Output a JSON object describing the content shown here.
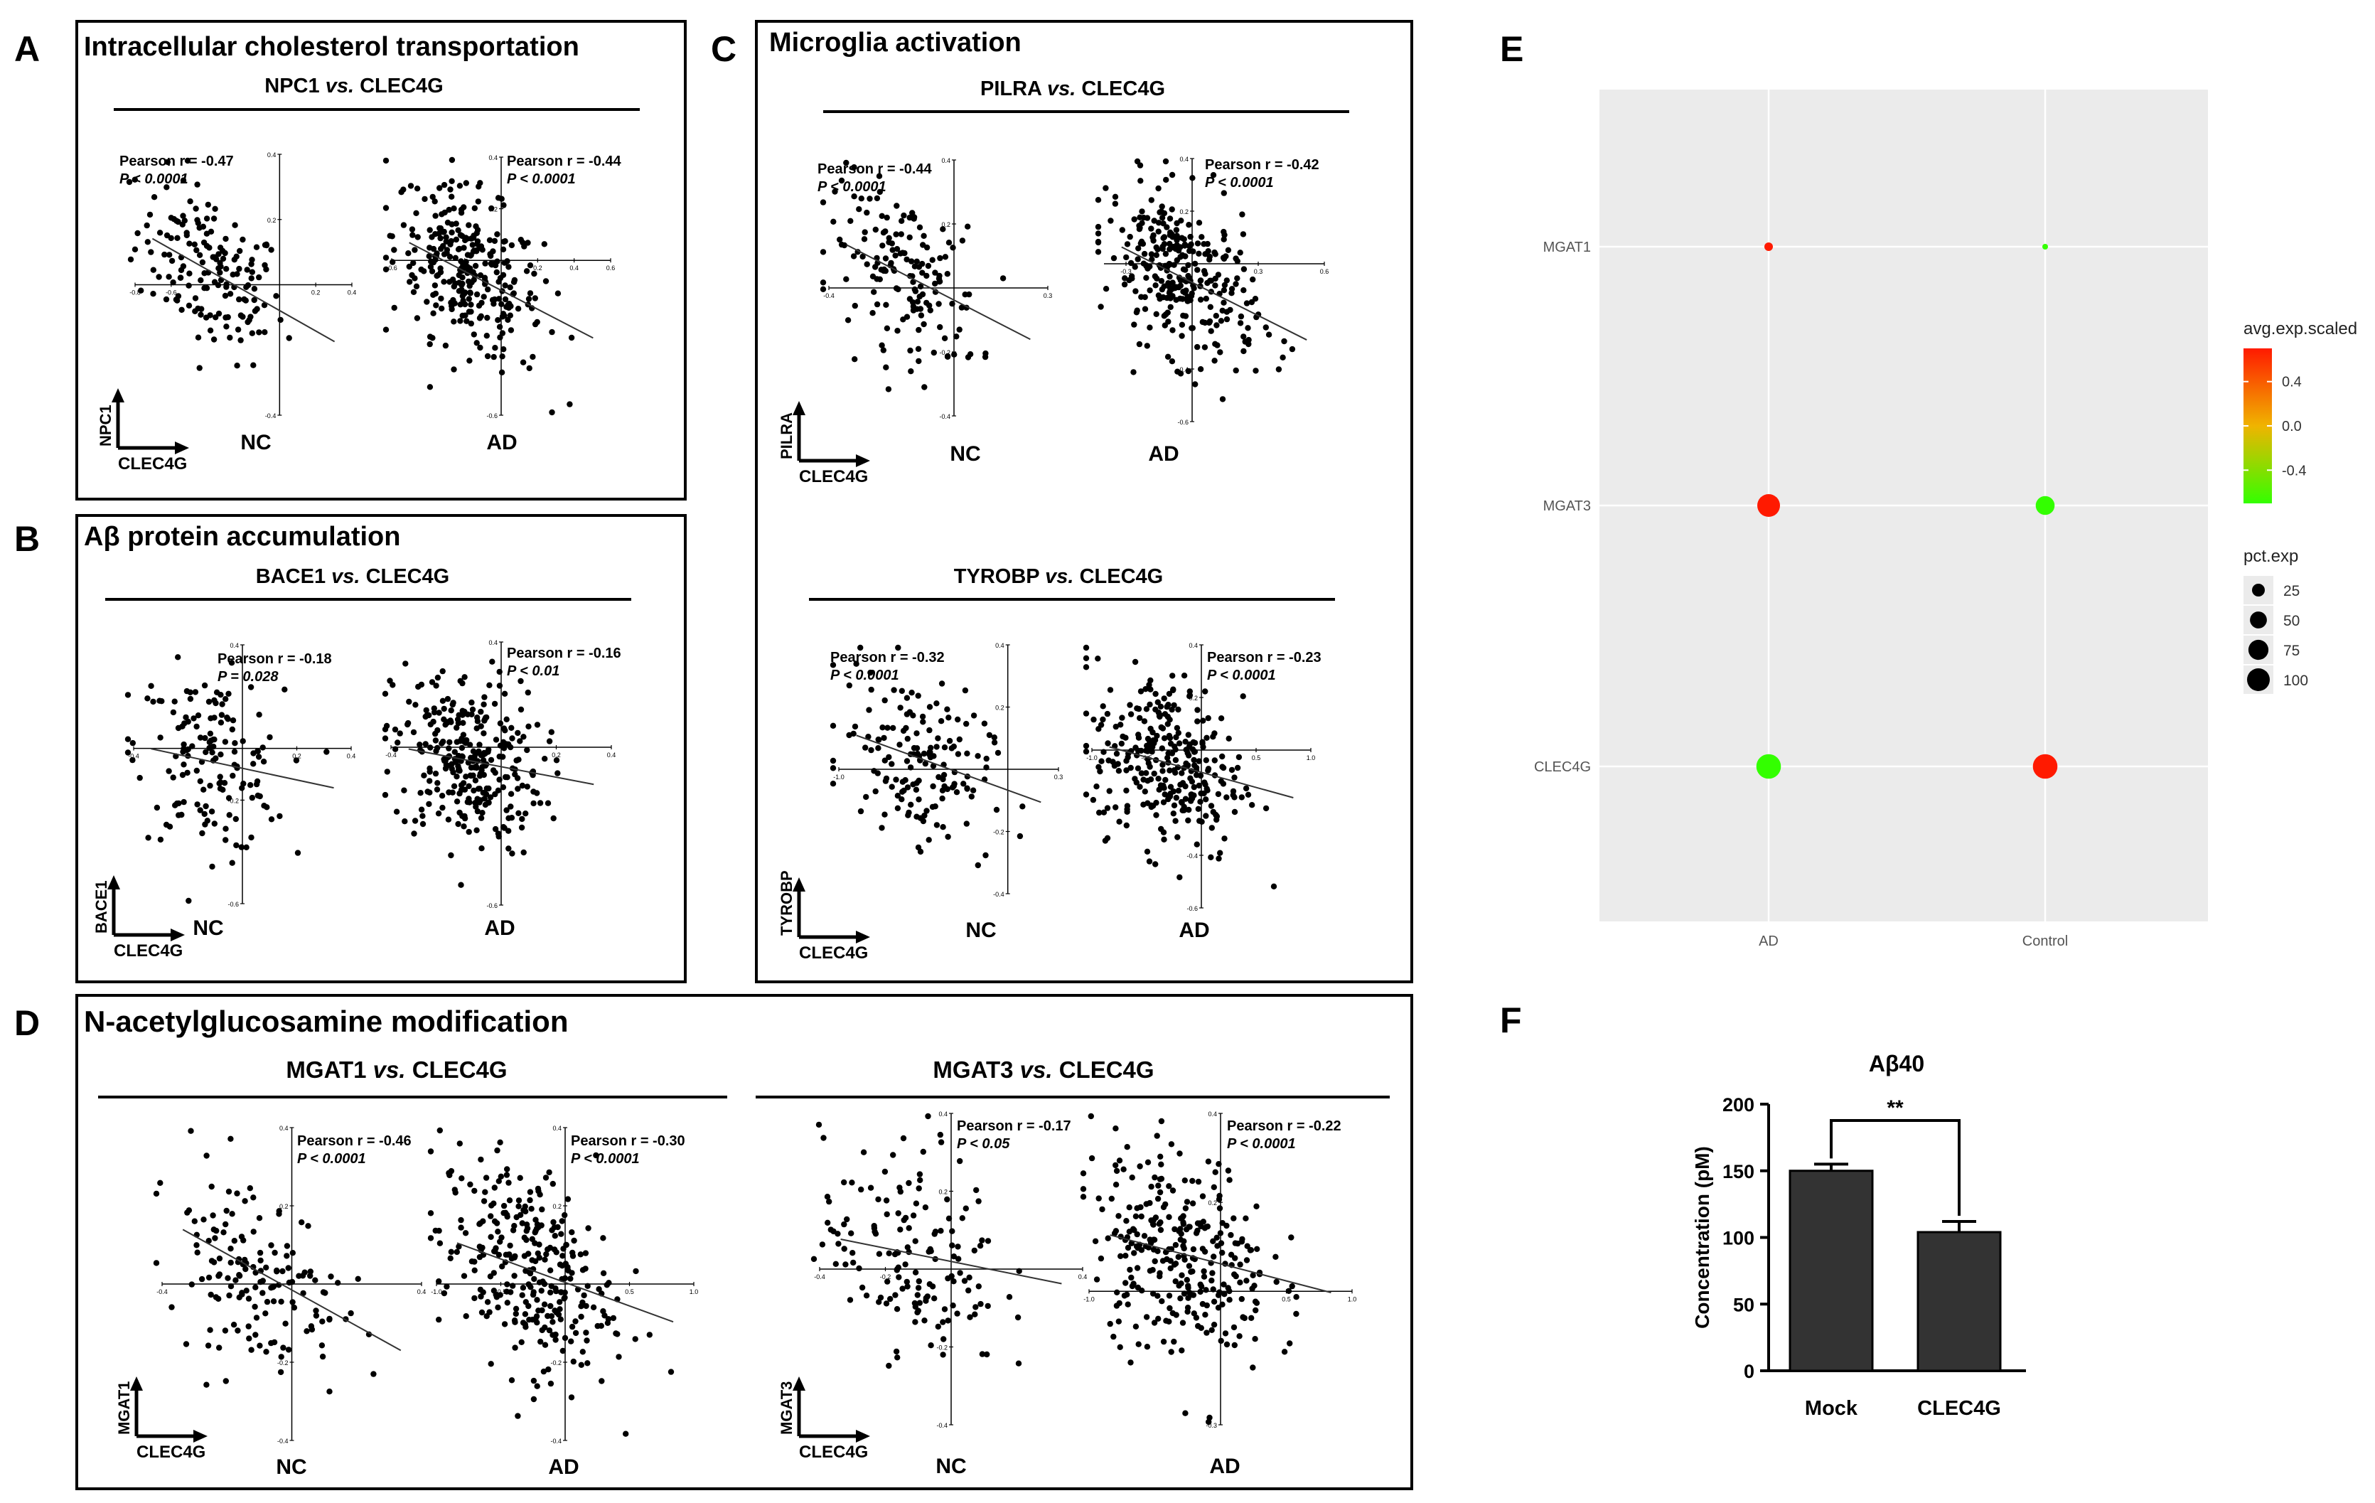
{
  "panels": {
    "A": {
      "letter": "A",
      "title": "Intracellular cholesterol transportation",
      "sub": "NPC1 vs. CLEC4G",
      "sub_gene": "NPC1",
      "sub_vs": "vs.",
      "sub_ref": "CLEC4G",
      "y_label": "NPC1",
      "x_label": "CLEC4G",
      "plots": [
        {
          "group": "NC",
          "r_text": "Pearson r = -0.47",
          "p_text": "P < 0.0001",
          "n": 160,
          "r": -0.47,
          "xlim": [
            -0.8,
            0.4
          ],
          "ylim": [
            -0.4,
            0.4
          ],
          "xticks": [
            "-0.8",
            "-0.6",
            "0.2",
            "0.4"
          ],
          "yticks": [
            "0.4",
            "0.2",
            "-0.4"
          ]
        },
        {
          "group": "AD",
          "r_text": "Pearson r = -0.44",
          "p_text": "P < 0.0001",
          "n": 300,
          "r": -0.44,
          "xlim": [
            -0.6,
            0.6
          ],
          "ylim": [
            -0.6,
            0.4
          ],
          "xticks": [
            "-0.6",
            "-0.2",
            "0.2",
            "0.4",
            "0.6"
          ],
          "yticks": [
            "0.4",
            "0.2",
            "-0.6"
          ]
        }
      ]
    },
    "B": {
      "letter": "B",
      "title": "Aβ protein accumulation",
      "sub": "BACE1 vs. CLEC4G",
      "sub_gene": "BACE1",
      "sub_vs": "vs.",
      "sub_ref": "CLEC4G",
      "y_label": "BACE1",
      "x_label": "CLEC4G",
      "plots": [
        {
          "group": "NC",
          "r_text": "Pearson r = -0.18",
          "p_text": "P = 0.028",
          "n": 150,
          "r": -0.18,
          "xlim": [
            -0.4,
            0.4
          ],
          "ylim": [
            -0.6,
            0.4
          ],
          "xticks": [
            "-0.4",
            "0.2",
            "0.4"
          ],
          "yticks": [
            "0.4",
            "-0.2",
            "-0.6"
          ]
        },
        {
          "group": "AD",
          "r_text": "Pearson r = -0.16",
          "p_text": "P < 0.01",
          "n": 300,
          "r": -0.16,
          "xlim": [
            -0.4,
            0.4
          ],
          "ylim": [
            -0.6,
            0.4
          ],
          "xticks": [
            "-0.4",
            "0.2",
            "0.4"
          ],
          "yticks": [
            "0.4",
            "-0.6"
          ]
        }
      ]
    },
    "C1": {
      "letter": "C",
      "title": "Microglia activation",
      "sub": "PILRA vs. CLEC4G",
      "sub_gene": "PILRA",
      "sub_vs": "vs.",
      "sub_ref": "CLEC4G",
      "y_label": "PILRA",
      "x_label": "CLEC4G",
      "plots": [
        {
          "group": "NC",
          "r_text": "Pearson r = -0.44",
          "p_text": "P < 0.0001",
          "n": 160,
          "r": -0.44,
          "xlim": [
            -0.4,
            0.3
          ],
          "ylim": [
            -0.4,
            0.4
          ],
          "xticks": [
            "-0.4",
            "0.3"
          ],
          "yticks": [
            "0.4",
            "0.2",
            "-0.2",
            "-0.4"
          ]
        },
        {
          "group": "AD",
          "r_text": "Pearson r = -0.42",
          "p_text": "P < 0.0001",
          "n": 300,
          "r": -0.42,
          "xlim": [
            -0.4,
            0.6
          ],
          "ylim": [
            -0.6,
            0.4
          ],
          "xticks": [
            "-0.3",
            "0.3",
            "0.6"
          ],
          "yticks": [
            "0.4",
            "0.2",
            "-0.4",
            "-0.6"
          ]
        }
      ]
    },
    "C2": {
      "sub": "TYROBP vs. CLEC4G",
      "sub_gene": "TYROBP",
      "sub_vs": "vs.",
      "sub_ref": "CLEC4G",
      "y_label": "TYROBP",
      "x_label": "CLEC4G",
      "plots": [
        {
          "group": "NC",
          "r_text": "Pearson r = -0.32",
          "p_text": "P < 0.0001",
          "n": 160,
          "r": -0.32,
          "xlim": [
            -1.0,
            0.3
          ],
          "ylim": [
            -0.4,
            0.4
          ],
          "xticks": [
            "-1.0",
            "0.3"
          ],
          "yticks": [
            "0.4",
            "0.2",
            "-0.2",
            "-0.4"
          ]
        },
        {
          "group": "AD",
          "r_text": "Pearson r = -0.23",
          "p_text": "P < 0.0001",
          "n": 300,
          "r": -0.23,
          "xlim": [
            -1.0,
            1.0
          ],
          "ylim": [
            -0.6,
            0.4
          ],
          "xticks": [
            "-1.0",
            "-0.5",
            "0.5",
            "1.0"
          ],
          "yticks": [
            "0.4",
            "0.2",
            "-0.4",
            "-0.6"
          ]
        }
      ]
    },
    "D": {
      "letter": "D",
      "title": "N-acetylglucosamine modification",
      "subs": [
        {
          "sub": "MGAT1 vs. CLEC4G",
          "sub_gene": "MGAT1",
          "sub_vs": "vs.",
          "sub_ref": "CLEC4G",
          "y_label": "MGAT1",
          "x_label": "CLEC4G",
          "plots": [
            {
              "group": "NC",
              "r_text": "Pearson r = -0.46",
              "p_text": "P < 0.0001",
              "n": 150,
              "r": -0.46,
              "xlim": [
                -0.4,
                0.4
              ],
              "ylim": [
                -0.4,
                0.4
              ],
              "xticks": [
                "-0.4",
                "0.4"
              ],
              "yticks": [
                "0.4",
                "0.2",
                "-0.2",
                "-0.4"
              ]
            },
            {
              "group": "AD",
              "r_text": "Pearson r = -0.30",
              "p_text": "P < 0.0001",
              "n": 300,
              "r": -0.3,
              "xlim": [
                -1.0,
                1.0
              ],
              "ylim": [
                -0.4,
                0.4
              ],
              "xticks": [
                "-1.0",
                "-0.5",
                "0.5",
                "1.0"
              ],
              "yticks": [
                "0.4",
                "0.2",
                "-0.2",
                "-0.4"
              ]
            }
          ]
        },
        {
          "sub": "MGAT3 vs. CLEC4G",
          "sub_gene": "MGAT3",
          "sub_vs": "vs.",
          "sub_ref": "CLEC4G",
          "y_label": "MGAT3",
          "x_label": "CLEC4G",
          "plots": [
            {
              "group": "NC",
              "r_text": "Pearson r = -0.17",
              "p_text": "P < 0.05",
              "n": 150,
              "r": -0.17,
              "xlim": [
                -0.4,
                0.4
              ],
              "ylim": [
                -0.4,
                0.4
              ],
              "xticks": [
                "-0.4",
                "-0.2",
                "0.4"
              ],
              "yticks": [
                "0.4",
                "0.2",
                "-0.2",
                "-0.4"
              ]
            },
            {
              "group": "AD",
              "r_text": "Pearson r = -0.22",
              "p_text": "P < 0.0001",
              "n": 300,
              "r": -0.22,
              "xlim": [
                -1.0,
                1.0
              ],
              "ylim": [
                -0.3,
                0.4
              ],
              "xticks": [
                "-1.0",
                "0.5",
                "1.0"
              ],
              "yticks": [
                "0.4",
                "0.2",
                "-0.3"
              ]
            }
          ]
        }
      ]
    },
    "E": {
      "letter": "E"
    },
    "F": {
      "letter": "F"
    }
  },
  "chart_data": [
    {
      "type": "scatter",
      "panel": "A",
      "title": "NPC1 vs. CLEC4G",
      "xlabel": "CLEC4G",
      "ylabel": "NPC1",
      "series": [
        {
          "name": "NC",
          "pearson_r": -0.47,
          "p_value": "< 0.0001"
        },
        {
          "name": "AD",
          "pearson_r": -0.44,
          "p_value": "< 0.0001"
        }
      ]
    },
    {
      "type": "scatter",
      "panel": "B",
      "title": "BACE1 vs. CLEC4G",
      "xlabel": "CLEC4G",
      "ylabel": "BACE1",
      "series": [
        {
          "name": "NC",
          "pearson_r": -0.18,
          "p_value": "= 0.028"
        },
        {
          "name": "AD",
          "pearson_r": -0.16,
          "p_value": "< 0.01"
        }
      ]
    },
    {
      "type": "scatter",
      "panel": "C",
      "title": "PILRA vs. CLEC4G",
      "xlabel": "CLEC4G",
      "ylabel": "PILRA",
      "series": [
        {
          "name": "NC",
          "pearson_r": -0.44,
          "p_value": "< 0.0001"
        },
        {
          "name": "AD",
          "pearson_r": -0.42,
          "p_value": "< 0.0001"
        }
      ]
    },
    {
      "type": "scatter",
      "panel": "C",
      "title": "TYROBP vs. CLEC4G",
      "xlabel": "CLEC4G",
      "ylabel": "TYROBP",
      "series": [
        {
          "name": "NC",
          "pearson_r": -0.32,
          "p_value": "< 0.0001"
        },
        {
          "name": "AD",
          "pearson_r": -0.23,
          "p_value": "< 0.0001"
        }
      ]
    },
    {
      "type": "scatter",
      "panel": "D",
      "title": "MGAT1 vs. CLEC4G",
      "xlabel": "CLEC4G",
      "ylabel": "MGAT1",
      "series": [
        {
          "name": "NC",
          "pearson_r": -0.46,
          "p_value": "< 0.0001"
        },
        {
          "name": "AD",
          "pearson_r": -0.3,
          "p_value": "< 0.0001"
        }
      ]
    },
    {
      "type": "scatter",
      "panel": "D",
      "title": "MGAT3 vs. CLEC4G",
      "xlabel": "CLEC4G",
      "ylabel": "MGAT3",
      "series": [
        {
          "name": "NC",
          "pearson_r": -0.17,
          "p_value": "< 0.05"
        },
        {
          "name": "AD",
          "pearson_r": -0.22,
          "p_value": "< 0.0001"
        }
      ]
    },
    {
      "type": "dotplot",
      "panel": "E",
      "x_categories": [
        "AD",
        "Control"
      ],
      "y_categories": [
        "MGAT1",
        "MGAT3",
        "CLEC4G"
      ],
      "points": [
        {
          "gene": "MGAT1",
          "group": "AD",
          "avg_exp_scaled": 0.7,
          "pct_exp": 8
        },
        {
          "gene": "MGAT1",
          "group": "Control",
          "avg_exp_scaled": -0.7,
          "pct_exp": 2
        },
        {
          "gene": "MGAT3",
          "group": "AD",
          "avg_exp_scaled": 0.7,
          "pct_exp": 100
        },
        {
          "gene": "MGAT3",
          "group": "Control",
          "avg_exp_scaled": -0.7,
          "pct_exp": 65
        },
        {
          "gene": "CLEC4G",
          "group": "AD",
          "avg_exp_scaled": -0.7,
          "pct_exp": 120
        },
        {
          "gene": "CLEC4G",
          "group": "Control",
          "avg_exp_scaled": 0.7,
          "pct_exp": 120
        }
      ],
      "color_legend": {
        "title": "avg.exp.scaled",
        "ticks": [
          "0.4",
          "0.0",
          "-0.4"
        ],
        "low": "#33ff00",
        "mid": "#f0b400",
        "high": "#ff1a00",
        "tick_values": [
          0.4,
          0.0,
          -0.4
        ],
        "range": [
          -0.7,
          0.7
        ]
      },
      "size_legend": {
        "title": "pct.exp",
        "labels": [
          "25",
          "50",
          "75",
          "100"
        ],
        "values": [
          25,
          50,
          75,
          100
        ]
      },
      "panel_bg": "#ebebeb"
    },
    {
      "type": "bar",
      "panel": "F",
      "title": "Aβ40",
      "categories": [
        "Mock",
        "CLEC4G"
      ],
      "values": [
        150,
        104
      ],
      "errors": [
        5,
        8
      ],
      "ylabel": "Concentration (pM)",
      "ylim": [
        0,
        200
      ],
      "yticks": [
        "0",
        "50",
        "100",
        "150",
        "200"
      ],
      "ytick_values": [
        0,
        50,
        100,
        150,
        200
      ],
      "significance": "**",
      "bar_color": "#333333"
    }
  ]
}
